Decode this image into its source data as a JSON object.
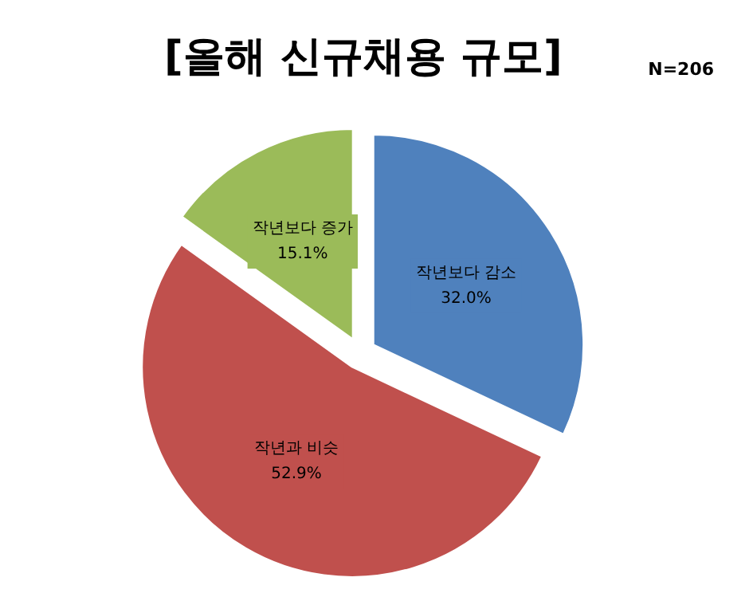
{
  "chart_data": {
    "type": "pie",
    "title": "[올해 신규채용 규모]",
    "annotations": [
      "N=206"
    ],
    "categories": [
      "작년보다 감소",
      "작년과 비슷",
      "작년보다 증가"
    ],
    "values": [
      32.0,
      52.9,
      15.1
    ],
    "colors": [
      "#4f81bd",
      "#c0504d",
      "#9bbb59"
    ],
    "value_labels": [
      "32.0%",
      "52.9%",
      "15.1%"
    ],
    "legend": false
  }
}
